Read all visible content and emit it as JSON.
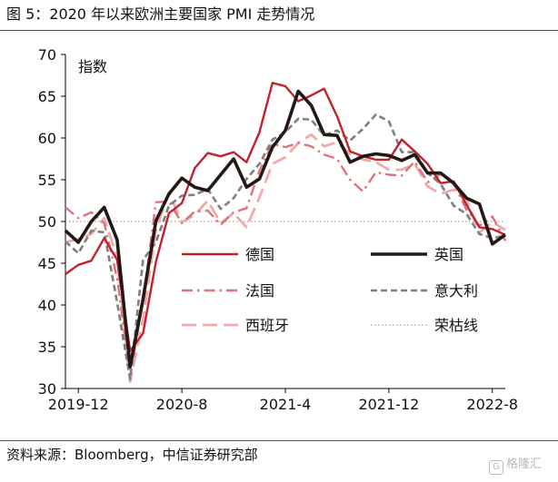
{
  "figure": {
    "title": "图 5：2020 年以来欧洲主要国家 PMI 走势情况",
    "source": "资料来源：Bloomberg，中信证券研究部",
    "watermark_icon": "g-logo-icon",
    "watermark_text": "格隆汇"
  },
  "chart_data": {
    "type": "line",
    "ylabel": "指数",
    "ylim": [
      30,
      70
    ],
    "yticks": [
      30,
      35,
      40,
      45,
      50,
      55,
      60,
      65,
      70
    ],
    "xlim": [
      "2019-11",
      "2022-9"
    ],
    "xticks": [
      "2019-12",
      "2020-8",
      "2021-4",
      "2021-12",
      "2022-8"
    ],
    "grid": false,
    "legend_position": "lower-center, inside",
    "legend": [
      "德国",
      "英国",
      "法国",
      "意大利",
      "西班牙",
      "荣枯线"
    ],
    "colors": {
      "germany": "#c0232c",
      "uk": "#231815",
      "france": "#e0727a",
      "italy": "#7f7f7f",
      "spain": "#f1a9ab",
      "threshold": "#a6a6a6"
    },
    "x": [
      "2019-11",
      "2019-12",
      "2020-1",
      "2020-2",
      "2020-3",
      "2020-4",
      "2020-5",
      "2020-6",
      "2020-7",
      "2020-8",
      "2020-9",
      "2020-10",
      "2020-11",
      "2020-12",
      "2021-1",
      "2021-2",
      "2021-3",
      "2021-4",
      "2021-5",
      "2021-6",
      "2021-7",
      "2021-8",
      "2021-9",
      "2021-10",
      "2021-11",
      "2021-12",
      "2022-1",
      "2022-2",
      "2022-3",
      "2022-4",
      "2022-5",
      "2022-6",
      "2022-7",
      "2022-8",
      "2022-9"
    ],
    "series": [
      {
        "name": "德国",
        "key": "germany",
        "style": "solid",
        "values": [
          43.7,
          44.8,
          45.3,
          48.0,
          45.4,
          34.5,
          36.6,
          45.2,
          51.0,
          52.2,
          56.4,
          58.2,
          57.8,
          58.3,
          57.1,
          60.7,
          66.6,
          66.2,
          64.4,
          65.1,
          65.9,
          62.6,
          58.4,
          57.8,
          57.4,
          57.4,
          59.8,
          58.4,
          56.9,
          54.6,
          54.8,
          52.0,
          49.3,
          49.1,
          48.4
        ]
      },
      {
        "name": "英国",
        "key": "uk",
        "style": "solid-thick",
        "values": [
          48.9,
          47.5,
          50.0,
          51.7,
          47.8,
          32.6,
          40.7,
          50.1,
          53.3,
          55.2,
          54.1,
          53.7,
          55.6,
          57.5,
          54.1,
          55.1,
          58.9,
          60.9,
          65.6,
          63.9,
          60.4,
          60.3,
          57.1,
          57.8,
          58.1,
          57.9,
          57.3,
          58.0,
          55.8,
          55.8,
          54.6,
          52.8,
          52.1,
          47.3,
          48.4
        ]
      },
      {
        "name": "法国",
        "key": "france",
        "style": "dashdot",
        "values": [
          51.7,
          50.4,
          51.1,
          49.8,
          43.2,
          31.5,
          40.6,
          52.3,
          52.4,
          49.8,
          51.2,
          51.3,
          49.6,
          51.1,
          51.6,
          56.1,
          59.3,
          58.9,
          59.4,
          59.0,
          58.0,
          57.5,
          55.0,
          53.6,
          55.9,
          55.6,
          55.5,
          57.2,
          54.7,
          55.7,
          54.6,
          51.4,
          49.5,
          50.6,
          47.7
        ]
      },
      {
        "name": "意大利",
        "key": "italy",
        "style": "dashed",
        "values": [
          47.6,
          46.2,
          48.9,
          48.7,
          40.3,
          31.1,
          45.4,
          47.5,
          51.9,
          53.1,
          53.2,
          53.9,
          51.5,
          52.8,
          55.1,
          56.9,
          59.8,
          60.7,
          62.3,
          62.2,
          60.3,
          60.9,
          59.7,
          61.1,
          62.8,
          62.0,
          58.3,
          58.3,
          55.8,
          54.5,
          51.9,
          50.9,
          48.5,
          48.0,
          48.3
        ]
      },
      {
        "name": "西班牙",
        "key": "spain",
        "style": "longdash",
        "values": [
          47.5,
          47.9,
          48.5,
          50.4,
          45.7,
          30.8,
          38.3,
          49.0,
          53.5,
          49.9,
          50.8,
          52.5,
          49.8,
          51.0,
          49.3,
          52.9,
          56.9,
          57.7,
          59.4,
          60.4,
          59.0,
          59.5,
          58.1,
          57.4,
          57.1,
          56.2,
          56.2,
          56.9,
          54.2,
          53.3,
          53.8,
          52.6,
          48.7,
          49.9,
          49.0
        ]
      },
      {
        "name": "荣枯线",
        "key": "threshold",
        "style": "dotted",
        "values": [
          50,
          50,
          50,
          50,
          50,
          50,
          50,
          50,
          50,
          50,
          50,
          50,
          50,
          50,
          50,
          50,
          50,
          50,
          50,
          50,
          50,
          50,
          50,
          50,
          50,
          50,
          50,
          50,
          50,
          50,
          50,
          50,
          50,
          50,
          50
        ]
      }
    ]
  }
}
